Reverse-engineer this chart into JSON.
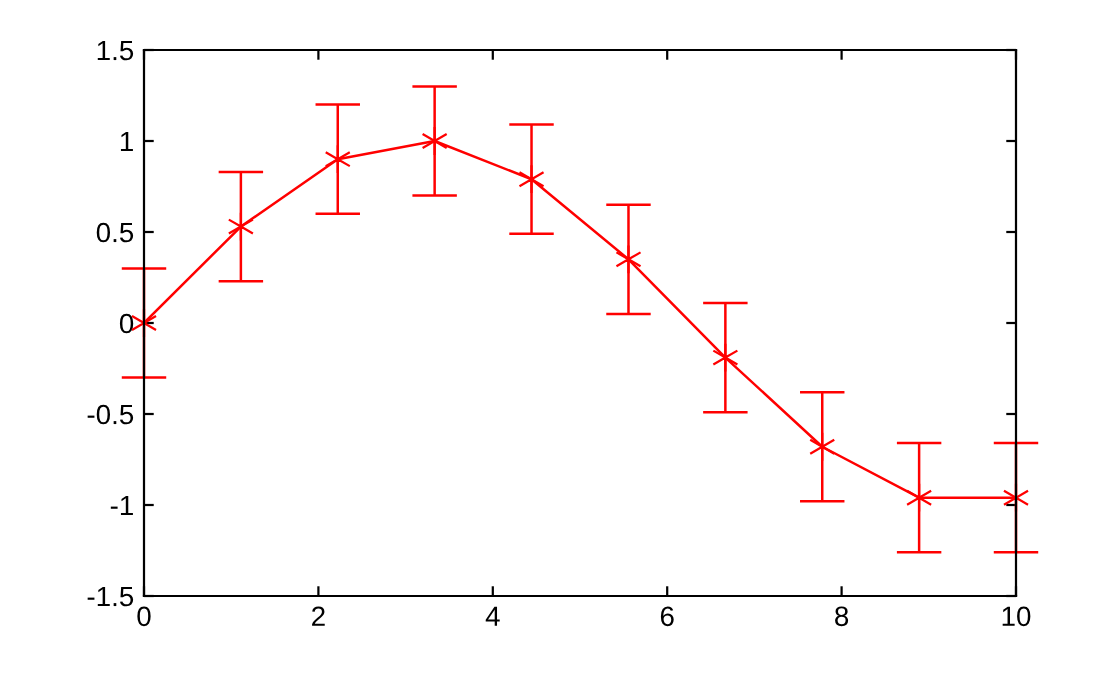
{
  "chart_data": {
    "type": "line",
    "x": [
      0,
      1.111,
      2.222,
      3.333,
      4.444,
      5.556,
      6.667,
      7.778,
      8.889,
      10
    ],
    "series": [
      {
        "color": "#ff0000",
        "values": [
          0,
          0.53,
          0.9,
          1.0,
          0.79,
          0.35,
          -0.19,
          -0.68,
          -0.96,
          -0.96
        ],
        "errors": [
          0.3,
          0.3,
          0.3,
          0.3,
          0.3,
          0.3,
          0.3,
          0.3,
          0.3,
          0.3
        ]
      }
    ],
    "xlim": [
      0,
      10
    ],
    "xticks": [
      0,
      2,
      4,
      6,
      8,
      10
    ],
    "ylim": [
      -1.5,
      1.5
    ],
    "yticks": [
      -1.5,
      -1,
      -0.5,
      0,
      0.5,
      1,
      1.5
    ],
    "marker": "cross",
    "line_style": "solid",
    "grid": false,
    "legend": false
  }
}
